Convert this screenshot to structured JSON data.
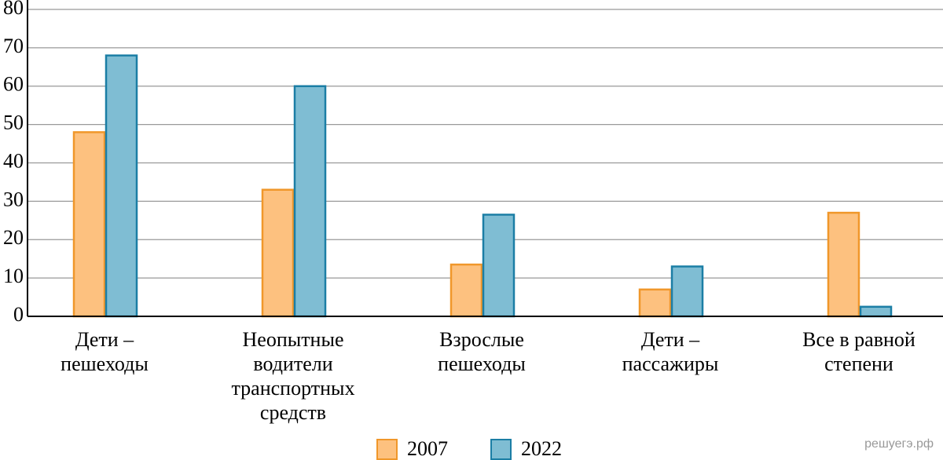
{
  "chart_data": {
    "type": "bar",
    "categories": [
      "Дети –\nпешеходы",
      "Неопытные\nводители\nтранспортных\nсредств",
      "Взрослые\nпешеходы",
      "Дети –\nпассажиры",
      "Все в равной\nстепени"
    ],
    "series": [
      {
        "name": "2007",
        "color": "#fdc17f",
        "edgecolor": "#f0972a",
        "values": [
          48,
          33,
          13.5,
          7,
          27
        ]
      },
      {
        "name": "2022",
        "color": "#7fbdd3",
        "edgecolor": "#1b7ea5",
        "values": [
          68,
          60,
          26.5,
          13,
          2.5
        ]
      }
    ],
    "ylim": [
      0,
      80
    ],
    "yticks": [
      0,
      10,
      20,
      30,
      40,
      50,
      60,
      70,
      80
    ],
    "grid": true,
    "legend": "bottom",
    "watermark": "решуегэ.рф"
  }
}
